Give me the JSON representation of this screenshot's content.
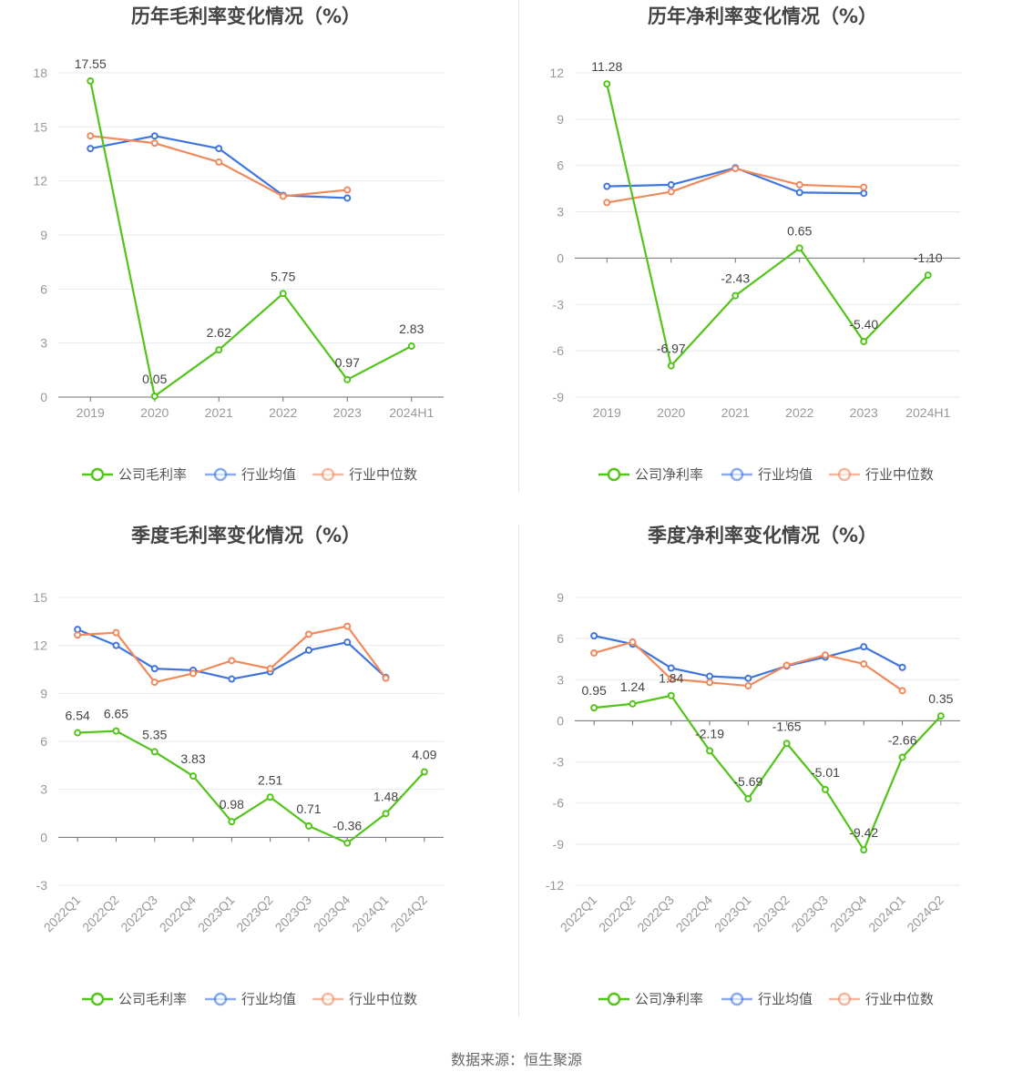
{
  "colors": {
    "company": "#52c41a",
    "industry_avg": "#3f75e0",
    "industry_median": "#f08a5d"
  },
  "source_text": "数据来源：恒生聚源",
  "chart_data": [
    {
      "type": "line",
      "title": "历年毛利率变化情况（%）",
      "categories": [
        "2019",
        "2020",
        "2021",
        "2022",
        "2023",
        "2024H1"
      ],
      "ylim": [
        0,
        18
      ],
      "yticks": [
        0,
        3,
        6,
        9,
        12,
        15,
        18
      ],
      "rotate_x": false,
      "series": [
        {
          "name": "公司毛利率",
          "values": [
            17.55,
            0.05,
            2.62,
            5.75,
            0.97,
            2.83
          ],
          "labels": [
            "17.55",
            "0.05",
            "2.62",
            "5.75",
            "0.97",
            "2.83"
          ]
        },
        {
          "name": "行业均值",
          "values": [
            13.8,
            14.5,
            13.8,
            11.2,
            11.05,
            null
          ]
        },
        {
          "name": "行业中位数",
          "values": [
            14.5,
            14.1,
            13.05,
            11.15,
            11.5,
            null
          ]
        }
      ]
    },
    {
      "type": "line",
      "title": "历年净利率变化情况（%）",
      "categories": [
        "2019",
        "2020",
        "2021",
        "2022",
        "2023",
        "2024H1"
      ],
      "ylim": [
        -9,
        12
      ],
      "yticks": [
        -9,
        -6,
        -3,
        0,
        3,
        6,
        9,
        12
      ],
      "rotate_x": false,
      "series": [
        {
          "name": "公司净利率",
          "values": [
            11.28,
            -6.97,
            -2.43,
            0.65,
            -5.4,
            -1.1
          ],
          "labels": [
            "11.28",
            "-6.97",
            "-2.43",
            "0.65",
            "-5.40",
            "-1.10"
          ]
        },
        {
          "name": "行业均值",
          "values": [
            4.65,
            4.75,
            5.85,
            4.25,
            4.2,
            null
          ]
        },
        {
          "name": "行业中位数",
          "values": [
            3.6,
            4.3,
            5.8,
            4.75,
            4.6,
            null
          ]
        }
      ]
    },
    {
      "type": "line",
      "title": "季度毛利率变化情况（%）",
      "categories": [
        "2022Q1",
        "2022Q2",
        "2022Q3",
        "2022Q4",
        "2023Q1",
        "2023Q2",
        "2023Q3",
        "2023Q4",
        "2024Q1",
        "2024Q2"
      ],
      "ylim": [
        -3,
        15
      ],
      "yticks": [
        -3,
        0,
        3,
        6,
        9,
        12,
        15
      ],
      "rotate_x": true,
      "series": [
        {
          "name": "公司毛利率",
          "values": [
            6.54,
            6.65,
            5.35,
            3.83,
            0.98,
            2.51,
            0.71,
            -0.36,
            1.48,
            4.09
          ],
          "labels": [
            "6.54",
            "6.65",
            "5.35",
            "3.83",
            "0.98",
            "2.51",
            "0.71",
            "-0.36",
            "1.48",
            "4.09"
          ]
        },
        {
          "name": "行业均值",
          "values": [
            13.0,
            12.0,
            10.55,
            10.45,
            9.9,
            10.35,
            11.7,
            12.2,
            10.0,
            null
          ]
        },
        {
          "name": "行业中位数",
          "values": [
            12.65,
            12.8,
            9.7,
            10.25,
            11.05,
            10.55,
            12.7,
            13.2,
            9.95,
            null
          ]
        }
      ]
    },
    {
      "type": "line",
      "title": "季度净利率变化情况（%）",
      "categories": [
        "2022Q1",
        "2022Q2",
        "2022Q3",
        "2022Q4",
        "2023Q1",
        "2023Q2",
        "2023Q3",
        "2023Q4",
        "2024Q1",
        "2024Q2"
      ],
      "ylim": [
        -12,
        9
      ],
      "yticks": [
        -12,
        -9,
        -6,
        -3,
        0,
        3,
        6,
        9
      ],
      "rotate_x": true,
      "series": [
        {
          "name": "公司净利率",
          "values": [
            0.95,
            1.24,
            1.84,
            -2.19,
            -5.69,
            -1.65,
            -5.01,
            -9.42,
            -2.66,
            0.35
          ],
          "labels": [
            "0.95",
            "1.24",
            "1.84",
            "-2.19",
            "-5.69",
            "-1.65",
            "-5.01",
            "-9.42",
            "-2.66",
            "0.35"
          ]
        },
        {
          "name": "行业均值",
          "values": [
            6.2,
            5.6,
            3.85,
            3.25,
            3.1,
            4.0,
            4.65,
            5.4,
            3.9,
            null
          ]
        },
        {
          "name": "行业中位数",
          "values": [
            4.95,
            5.75,
            3.05,
            2.8,
            2.55,
            4.05,
            4.8,
            4.15,
            2.2,
            null
          ]
        }
      ]
    }
  ]
}
